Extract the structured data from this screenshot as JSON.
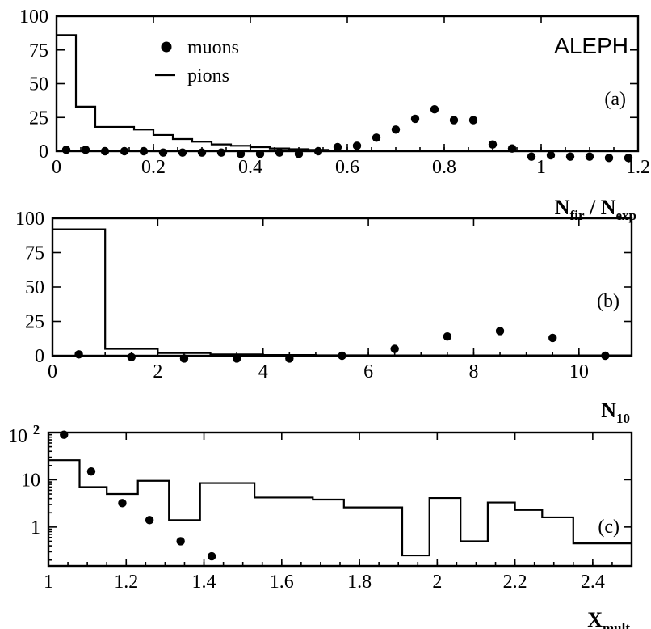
{
  "experiment": "ALEPH",
  "legend": {
    "muons": "muons",
    "pions": "pions"
  },
  "chart_data": [
    {
      "id": "a",
      "type": "histogram+scatter",
      "panel_label": "(a)",
      "xlabel": {
        "main": "N",
        "sub1": "fir",
        "mid": " / N",
        "sub2": "exp"
      },
      "xlim": [
        0,
        1.2
      ],
      "ylim": [
        0,
        100
      ],
      "xticks": [
        0,
        0.2,
        0.4,
        0.6,
        0.8,
        1,
        1.2
      ],
      "xtick_labels": [
        "0",
        "0.2",
        "0.4",
        "0.6",
        "0.8",
        "1",
        "1.2"
      ],
      "yticks": [
        0,
        25,
        50,
        75,
        100
      ],
      "ytick_labels": [
        "0",
        "25",
        "50",
        "75",
        "100"
      ],
      "series": [
        {
          "name": "pions",
          "kind": "step",
          "edges": [
            0,
            0.04,
            0.08,
            0.12,
            0.16,
            0.2,
            0.24,
            0.28,
            0.32,
            0.36,
            0.4,
            0.44,
            0.48,
            0.52,
            0.56,
            0.6,
            0.64,
            0.68,
            0.72,
            0.76,
            0.8,
            0.84,
            0.88,
            0.92,
            0.96,
            1.0,
            1.04,
            1.08,
            1.12,
            1.16,
            1.2
          ],
          "values": [
            86,
            33,
            18,
            18,
            16,
            12,
            9,
            7,
            5,
            4,
            3,
            2,
            1.5,
            1,
            0.5,
            0.5,
            0.3,
            0.2,
            0.2,
            0.2,
            0.2,
            0.2,
            0.2,
            0.2,
            0.2,
            0.2,
            0.2,
            0.2,
            0.2,
            0.2
          ]
        },
        {
          "name": "muons",
          "kind": "points",
          "x": [
            0.02,
            0.06,
            0.1,
            0.14,
            0.18,
            0.22,
            0.26,
            0.3,
            0.34,
            0.38,
            0.42,
            0.46,
            0.5,
            0.54,
            0.58,
            0.62,
            0.66,
            0.7,
            0.74,
            0.78,
            0.82,
            0.86,
            0.9,
            0.94,
            0.98,
            1.02,
            1.06,
            1.1,
            1.14,
            1.18
          ],
          "y": [
            1,
            1,
            0,
            0,
            0,
            -1,
            -1,
            -1,
            -1,
            -2,
            -2,
            -1,
            -2,
            0,
            3,
            4,
            10,
            16,
            24,
            31,
            23,
            23,
            5,
            2,
            -4,
            -3,
            -4,
            -4,
            -5,
            -5
          ]
        }
      ]
    },
    {
      "id": "b",
      "type": "histogram+scatter",
      "panel_label": "(b)",
      "xlabel": {
        "main": "N",
        "sub1": "10"
      },
      "xlim": [
        0,
        11
      ],
      "ylim": [
        0,
        100
      ],
      "xticks": [
        0,
        2,
        4,
        6,
        8,
        10
      ],
      "xtick_labels": [
        "0",
        "2",
        "4",
        "6",
        "8",
        "10"
      ],
      "yticks": [
        0,
        25,
        50,
        75,
        100
      ],
      "ytick_labels": [
        "0",
        "25",
        "50",
        "75",
        "100"
      ],
      "series": [
        {
          "name": "pions",
          "kind": "step",
          "edges": [
            0,
            1,
            2,
            3,
            4,
            5,
            6,
            7,
            8,
            9,
            10,
            11
          ],
          "values": [
            92,
            5,
            2,
            1,
            0.5,
            0.3,
            0.2,
            0.2,
            0.2,
            0.2,
            0.2
          ]
        },
        {
          "name": "muons",
          "kind": "points",
          "x": [
            0.5,
            1.5,
            2.5,
            3.5,
            4.5,
            5.5,
            6.5,
            7.5,
            8.5,
            9.5,
            10.5
          ],
          "y": [
            1,
            -1,
            -2,
            -2,
            -2,
            0,
            5,
            14,
            18,
            13,
            0
          ]
        }
      ]
    },
    {
      "id": "c",
      "type": "histogram+scatter",
      "panel_label": "(c)",
      "xlabel": {
        "main": "X",
        "sub1": "mult"
      },
      "xlim": [
        1,
        2.5
      ],
      "ylim": [
        0.15,
        100
      ],
      "yscale": "log",
      "xticks": [
        1,
        1.2,
        1.4,
        1.6,
        1.8,
        2,
        2.2,
        2.4
      ],
      "xtick_labels": [
        "1",
        "1.2",
        "1.4",
        "1.6",
        "1.8",
        "2",
        "2.2",
        "2.4"
      ],
      "yticks": [
        1,
        10
      ],
      "ytick_labels": [
        "1",
        "10"
      ],
      "ytop_label": {
        "base": "10",
        "exp": "2"
      },
      "series": [
        {
          "name": "pions",
          "kind": "step",
          "edges": [
            1.0,
            1.08,
            1.15,
            1.23,
            1.31,
            1.39,
            1.53,
            1.68,
            1.76,
            1.91,
            1.98,
            2.06,
            2.13,
            2.2,
            2.27,
            2.35,
            2.5
          ],
          "values": [
            26,
            7,
            5,
            9.5,
            1.4,
            8.5,
            4.2,
            3.8,
            2.6,
            0.25,
            4.1,
            0.5,
            3.3,
            2.3,
            1.6,
            0.45
          ]
        },
        {
          "name": "muons",
          "kind": "points",
          "x": [
            1.04,
            1.11,
            1.19,
            1.26,
            1.34,
            1.42
          ],
          "y": [
            90,
            15,
            3.2,
            1.4,
            0.5,
            0.24
          ]
        }
      ]
    }
  ]
}
